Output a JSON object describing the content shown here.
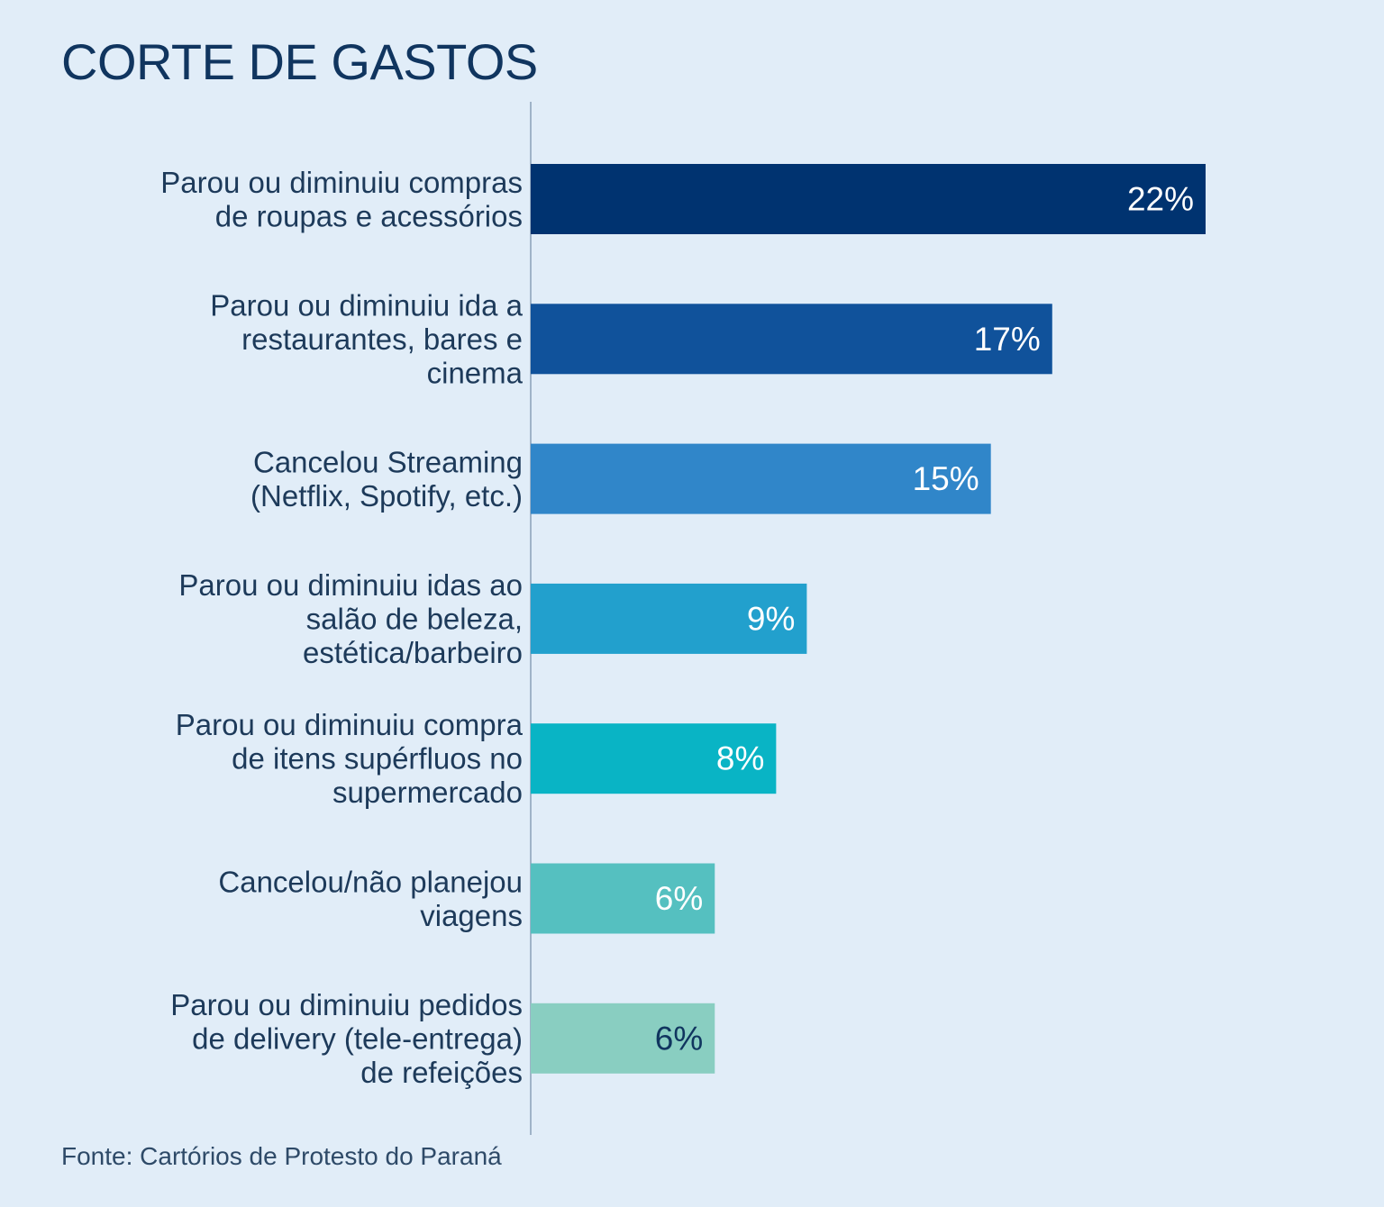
{
  "chart_data": {
    "type": "bar",
    "orientation": "horizontal",
    "title": "CORTE DE GASTOS",
    "xlabel": "",
    "ylabel": "",
    "xlim": [
      0,
      22
    ],
    "grid": false,
    "legend": "none",
    "categories": [
      [
        "Parou ou diminuiu compras",
        "de roupas e acessórios"
      ],
      [
        "Parou ou diminuiu ida a",
        "restaurantes, bares e",
        "cinema"
      ],
      [
        "Cancelou Streaming",
        "(Netflix, Spotify, etc.)"
      ],
      [
        "Parou ou diminuiu idas ao",
        "salão de beleza,",
        "estética/barbeiro"
      ],
      [
        "Parou ou diminuiu compra",
        "de itens supérfluos no",
        "supermercado"
      ],
      [
        "Cancelou/não planejou",
        "viagens"
      ],
      [
        "Parou ou diminuiu pedidos",
        "de delivery (tele-entrega)",
        "de refeições"
      ]
    ],
    "values": [
      22,
      17,
      15,
      9,
      8,
      6,
      6
    ],
    "value_labels": [
      "22%",
      "17%",
      "15%",
      "9%",
      "8%",
      "6%",
      "6%"
    ],
    "bar_colors": [
      "#003370",
      "#10529b",
      "#3086c9",
      "#22a0cd",
      "#09b4c5",
      "#55c0c0",
      "#89cec1"
    ],
    "label_colors": [
      "#ffffff",
      "#ffffff",
      "#ffffff",
      "#ffffff",
      "#ffffff",
      "#ffffff",
      "#10355f"
    ],
    "axis_color": "#9fb3c8",
    "source": "Fonte: Cartórios de Protesto do Paraná"
  }
}
